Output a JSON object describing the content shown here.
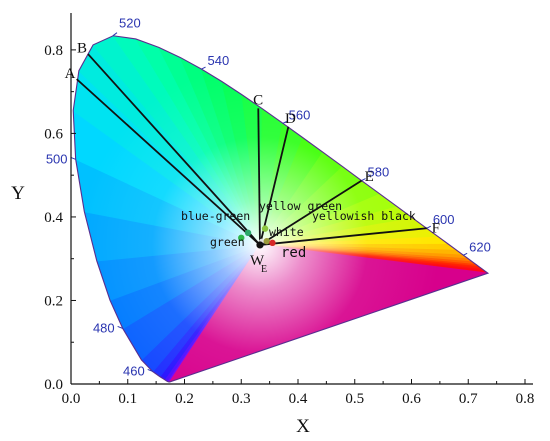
{
  "chart_data": {
    "type": "scatter",
    "title": "",
    "xlabel": "X",
    "ylabel": "Y",
    "xlim": [
      0.0,
      0.8
    ],
    "ylim": [
      0.0,
      0.85
    ],
    "grid": false,
    "x_ticks": [
      "0.0",
      "0.1",
      "0.2",
      "0.3",
      "0.4",
      "0.5",
      "0.6",
      "0.7",
      "0.8"
    ],
    "y_ticks": [
      "0.0",
      "0.2",
      "0.4",
      "0.6",
      "0.8"
    ],
    "white_point": {
      "label": "W",
      "subscript": "E",
      "x": 0.333,
      "y": 0.333
    },
    "spectral_locus": [
      [
        0.1741,
        0.005
      ],
      [
        0.1714,
        0.0051
      ],
      [
        0.1689,
        0.0069
      ],
      [
        0.1644,
        0.0109
      ],
      [
        0.1566,
        0.0177
      ],
      [
        0.144,
        0.0297
      ],
      [
        0.1241,
        0.0578
      ],
      [
        0.0913,
        0.1327
      ],
      [
        0.0687,
        0.2007
      ],
      [
        0.0454,
        0.295
      ],
      [
        0.0235,
        0.4127
      ],
      [
        0.0082,
        0.5384
      ],
      [
        0.0039,
        0.6548
      ],
      [
        0.0139,
        0.7502
      ],
      [
        0.0389,
        0.812
      ],
      [
        0.0743,
        0.8338
      ],
      [
        0.1142,
        0.8262
      ],
      [
        0.1547,
        0.8059
      ],
      [
        0.1929,
        0.7816
      ],
      [
        0.2296,
        0.7543
      ],
      [
        0.2658,
        0.7243
      ],
      [
        0.3016,
        0.6923
      ],
      [
        0.3373,
        0.6589
      ],
      [
        0.3731,
        0.6245
      ],
      [
        0.4087,
        0.5896
      ],
      [
        0.4441,
        0.5547
      ],
      [
        0.4788,
        0.5202
      ],
      [
        0.5125,
        0.4866
      ],
      [
        0.5448,
        0.4544
      ],
      [
        0.5752,
        0.4242
      ],
      [
        0.6029,
        0.3965
      ],
      [
        0.627,
        0.3725
      ],
      [
        0.6482,
        0.3514
      ],
      [
        0.6658,
        0.334
      ],
      [
        0.6801,
        0.3197
      ],
      [
        0.6915,
        0.3083
      ],
      [
        0.7006,
        0.2993
      ],
      [
        0.7079,
        0.292
      ],
      [
        0.714,
        0.2859
      ],
      [
        0.719,
        0.2809
      ],
      [
        0.723,
        0.277
      ],
      [
        0.726,
        0.274
      ],
      [
        0.7283,
        0.2717
      ],
      [
        0.7347,
        0.2653
      ]
    ],
    "wavelength_labels": [
      {
        "text": "460",
        "x": 0.144,
        "y": 0.03,
        "side": "left"
      },
      {
        "text": "480",
        "x": 0.091,
        "y": 0.133,
        "side": "left"
      },
      {
        "text": "500",
        "x": 0.008,
        "y": 0.538,
        "side": "left"
      },
      {
        "text": "520",
        "x": 0.074,
        "y": 0.834,
        "side": "up"
      },
      {
        "text": "540",
        "x": 0.23,
        "y": 0.754,
        "side": "right"
      },
      {
        "text": "560",
        "x": 0.373,
        "y": 0.624,
        "side": "right"
      },
      {
        "text": "580",
        "x": 0.512,
        "y": 0.487,
        "side": "right"
      },
      {
        "text": "600",
        "x": 0.627,
        "y": 0.373,
        "side": "right"
      },
      {
        "text": "620",
        "x": 0.691,
        "y": 0.308,
        "side": "right"
      }
    ],
    "lines": [
      {
        "label": "A",
        "x": 0.01,
        "y": 0.73
      },
      {
        "label": "B",
        "x": 0.03,
        "y": 0.79
      },
      {
        "label": "C",
        "x": 0.33,
        "y": 0.66
      },
      {
        "label": "D",
        "x": 0.383,
        "y": 0.616
      },
      {
        "label": "E",
        "x": 0.512,
        "y": 0.487
      },
      {
        "label": "F",
        "x": 0.627,
        "y": 0.373
      }
    ],
    "points": [
      {
        "name": "green",
        "x": 0.3,
        "y": 0.35,
        "color": "#2db84a"
      },
      {
        "name": "blue-green",
        "x": 0.312,
        "y": 0.362,
        "color": "#2aa86a"
      },
      {
        "name": "yellow green",
        "x": 0.342,
        "y": 0.372,
        "color": "#8cc63f"
      },
      {
        "name": "white",
        "x": 0.336,
        "y": 0.342,
        "color": "#e0e0e0"
      },
      {
        "name": "yellowish black",
        "x": 0.345,
        "y": 0.342,
        "color": "#9a9a3a"
      },
      {
        "name": "red",
        "x": 0.355,
        "y": 0.338,
        "color": "#d62828"
      }
    ],
    "point_labels": {
      "blue_green": "blue-green",
      "yellow_green": "yellow green",
      "white": "white",
      "yellowish_black": "yellowish black",
      "green": "green",
      "red": "red"
    }
  }
}
